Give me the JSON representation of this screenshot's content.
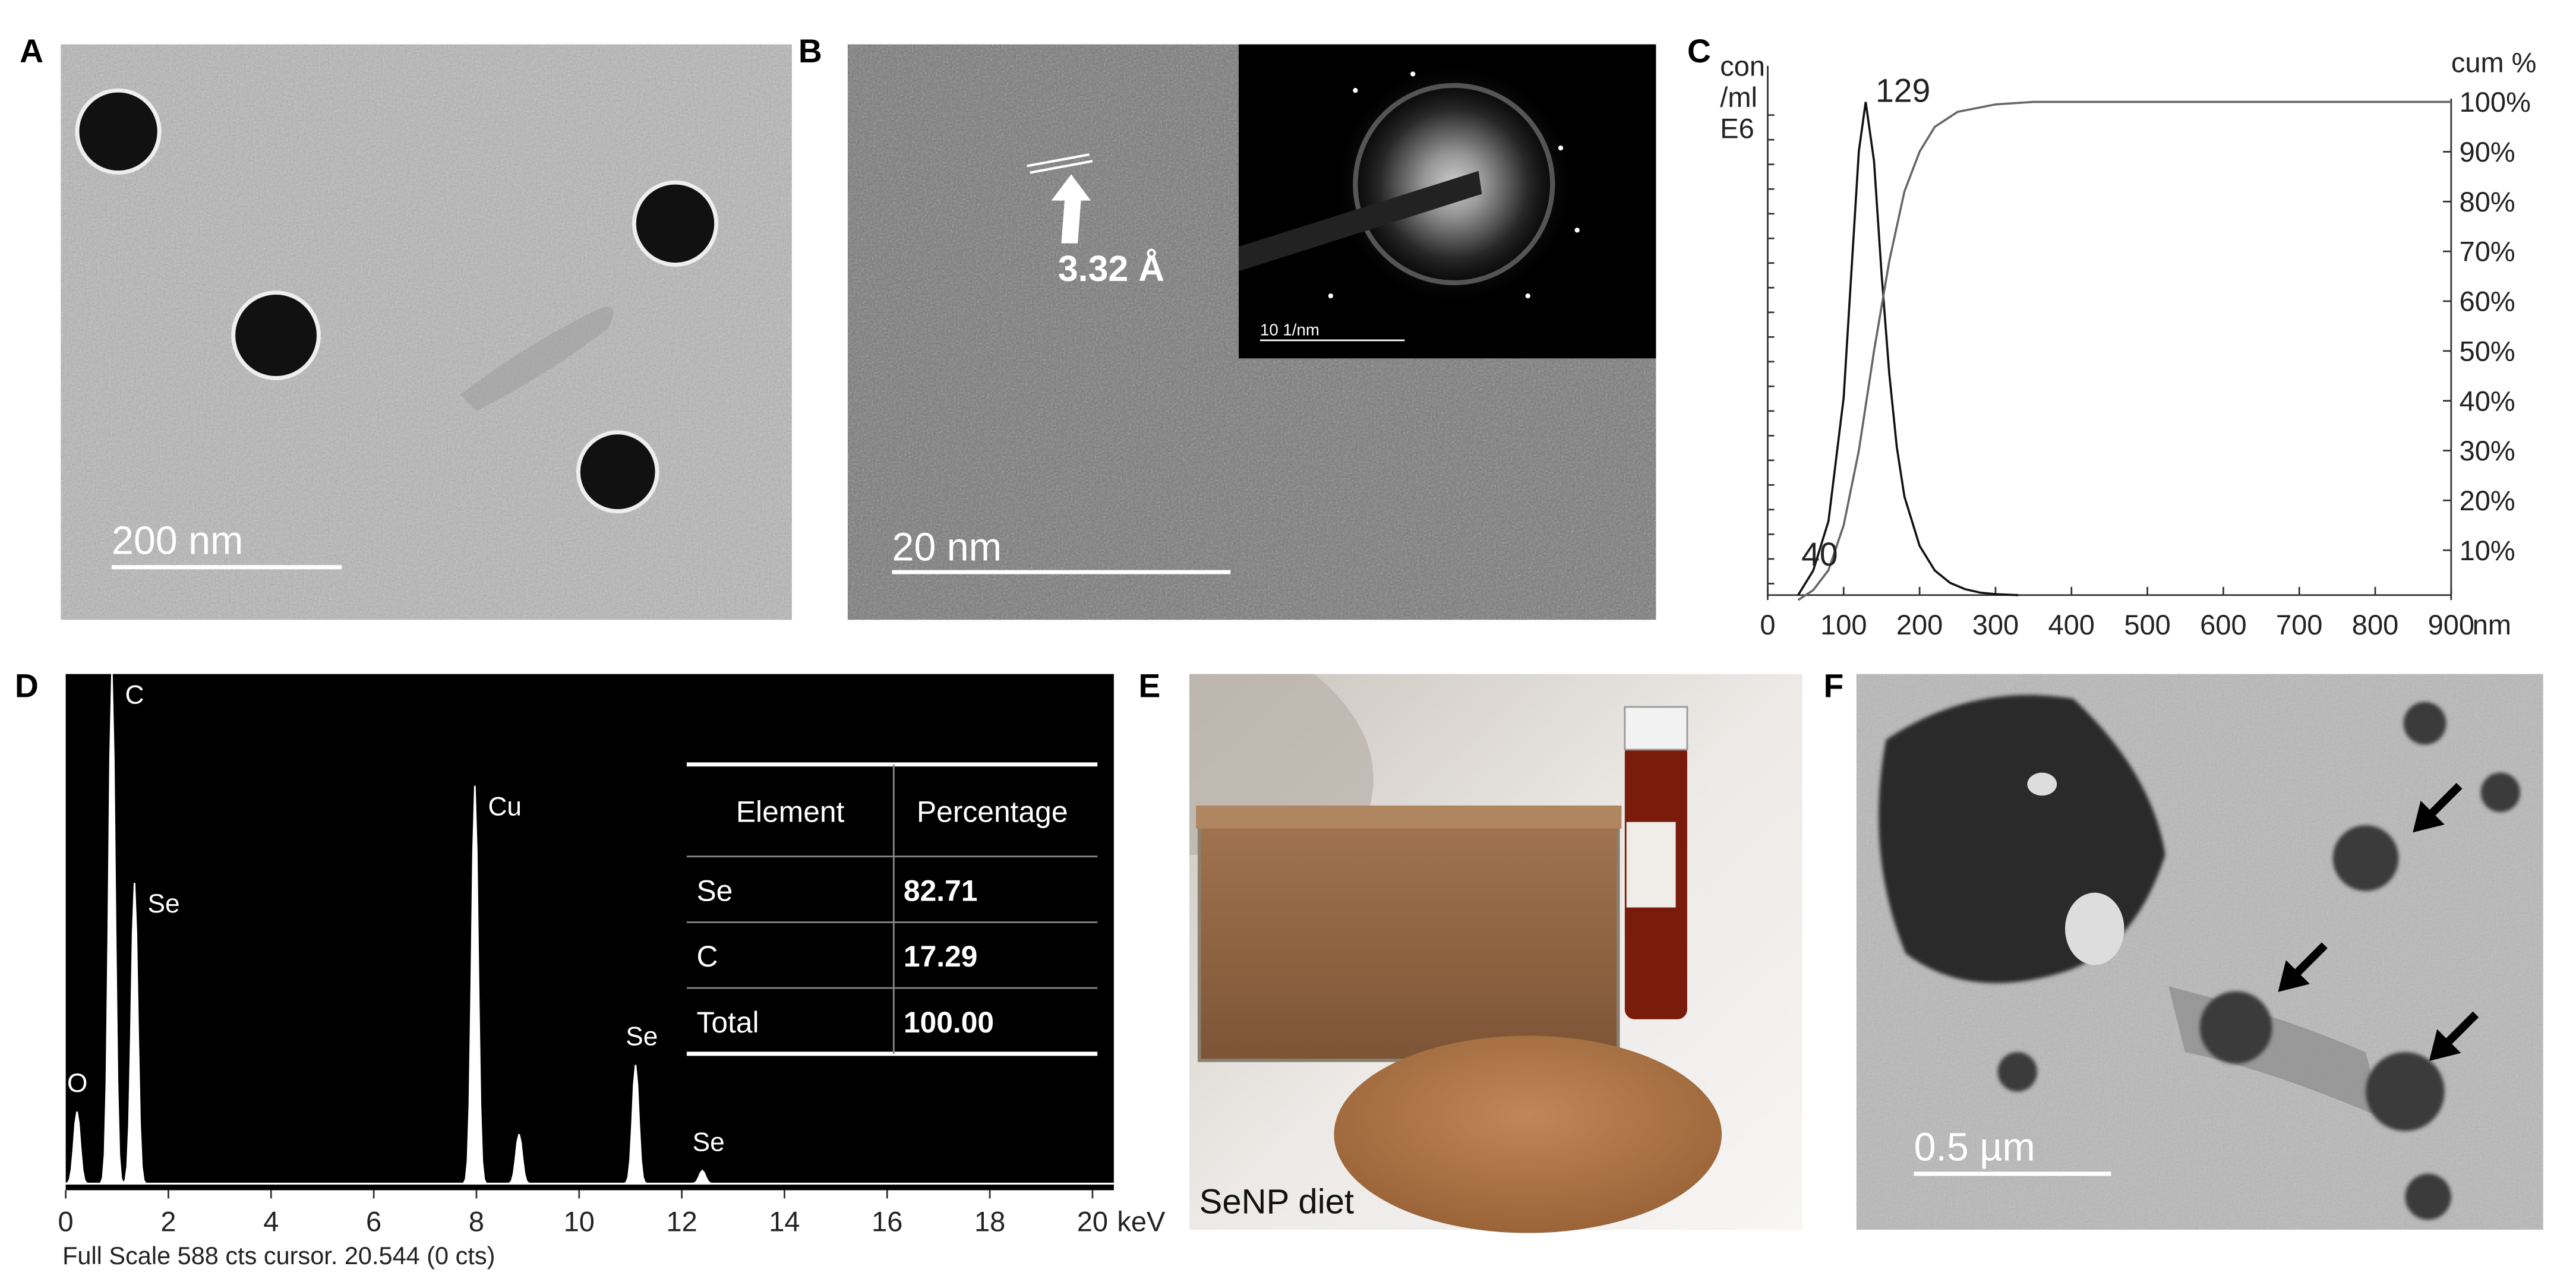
{
  "panels": {
    "A": {
      "label": "A",
      "scale_bar": "200 nm"
    },
    "B": {
      "label": "B",
      "scale_bar": "20 nm",
      "lattice_spacing": "3.32 Å",
      "inset_scale_bar": "10 1/nm"
    },
    "C": {
      "label": "C"
    },
    "D": {
      "label": "D",
      "footer": "Full Scale 588 cts cursor. 20.544 (0 cts)"
    },
    "E": {
      "label": "E",
      "caption": "SeNP diet"
    },
    "F": {
      "label": "F",
      "scale_bar": "0.5 µm"
    }
  },
  "chart_data": [
    {
      "type": "line",
      "y_label_lines": [
        "con",
        "/ml",
        "E6"
      ],
      "y2_label": "cum %",
      "x_label": "nm",
      "xlim": [
        0,
        900
      ],
      "xticks": [
        0,
        100,
        200,
        300,
        400,
        500,
        600,
        700,
        800,
        900
      ],
      "ylim": [
        0,
        100
      ],
      "y2lim": [
        0,
        100
      ],
      "y2ticks": [
        {
          "value": 10,
          "label": "10%"
        },
        {
          "value": 20,
          "label": "20%"
        },
        {
          "value": 30,
          "label": "30%"
        },
        {
          "value": 40,
          "label": "40%"
        },
        {
          "value": 50,
          "label": "50%"
        },
        {
          "value": 60,
          "label": "60%"
        },
        {
          "value": 70,
          "label": "70%"
        },
        {
          "value": 80,
          "label": "80%"
        },
        {
          "value": 90,
          "label": "90%"
        },
        {
          "value": 100,
          "label": "100%"
        }
      ],
      "series": [
        {
          "color": "#111111",
          "x": [
            40,
            60,
            80,
            100,
            110,
            120,
            129,
            140,
            150,
            160,
            170,
            180,
            200,
            220,
            240,
            260,
            280,
            300,
            330
          ],
          "values": [
            0,
            5,
            15,
            40,
            65,
            90,
            100,
            88,
            65,
            45,
            30,
            20,
            10,
            5,
            2.5,
            1.2,
            0.5,
            0.2,
            0
          ]
        },
        {
          "color": "#666666",
          "axis": "y2",
          "x": [
            40,
            60,
            80,
            100,
            120,
            140,
            160,
            180,
            200,
            220,
            250,
            300,
            350,
            400,
            900
          ],
          "values": [
            0,
            2,
            6,
            15,
            30,
            50,
            68,
            82,
            90,
            95,
            98,
            99.5,
            100,
            100,
            100
          ]
        }
      ],
      "annotations": [
        {
          "text": "129",
          "x": 129
        },
        {
          "text": "40",
          "x": 40
        }
      ]
    },
    {
      "type": "spectrum",
      "x_label": "keV",
      "xlim": [
        0,
        20
      ],
      "xticks": [
        0,
        2,
        4,
        6,
        8,
        10,
        12,
        14,
        16,
        18,
        20
      ],
      "ylim": [
        0,
        588
      ],
      "color": "#ffffff",
      "peaks": {
        "labels": [
          "O",
          "C",
          "Se",
          "Cu",
          null,
          "Se",
          "Se"
        ],
        "x": [
          0.22,
          0.9,
          1.34,
          7.97,
          8.83,
          11.1,
          12.4
        ],
        "values": [
          83,
          588,
          347,
          459,
          57,
          137,
          15
        ]
      }
    }
  ],
  "table": {
    "header": [
      "Element",
      "Percentage"
    ],
    "rows": [
      [
        "Se",
        "82.71"
      ],
      [
        "C",
        "17.29"
      ],
      [
        "Total",
        "100.00"
      ]
    ]
  }
}
